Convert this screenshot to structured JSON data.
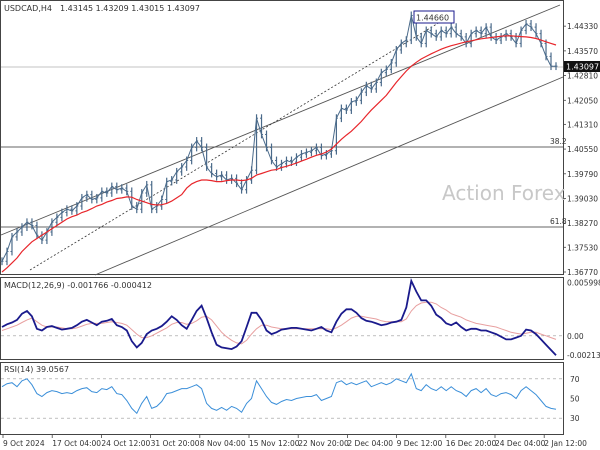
{
  "header": {
    "symbol": "USDCAD,H4",
    "ohlc": "1.43145 1.43209 1.43015 1.43097"
  },
  "watermark": "Action Forex",
  "annotations": {
    "high_label": "1.44660",
    "last_price": "1.43097",
    "fib_382": "38.2",
    "fib_618": "61.8"
  },
  "colors": {
    "candle": "#4a6a8a",
    "ma": "#e8262b",
    "macd": "#1a1a8c",
    "signal": "#e8a0a0",
    "rsi": "#3b8fd9",
    "channel": "#555555",
    "grid_dash": "#999999"
  },
  "chart_data": [
    {
      "name": "price",
      "type": "line",
      "ylim": [
        1.3677,
        1.4495
      ],
      "y_ticks": [
        "1.44330",
        "1.43570",
        "1.42810",
        "1.42050",
        "1.41310",
        "1.40550",
        "1.39790",
        "1.39030",
        "1.38270",
        "1.37530",
        "1.36770"
      ],
      "x_ticks": [
        "9 Oct 2024",
        "17 Oct 04:00",
        "24 Oct 12:00",
        "31 Oct 20:00",
        "8 Nov 04:00",
        "15 Nov 12:00",
        "22 Nov 20:00",
        "2 Dec 04:00",
        "9 Dec 12:00",
        "16 Dec 20:00",
        "24 Dec 04:00",
        "2 Jan 12:00"
      ],
      "x": [
        0,
        3,
        6,
        9,
        12,
        15,
        18,
        21,
        24,
        27,
        30,
        33,
        36,
        39,
        42,
        45,
        48,
        51,
        54,
        57,
        60,
        63,
        66,
        69,
        72,
        75,
        78,
        81,
        84,
        87,
        90,
        93,
        96,
        99,
        102,
        105,
        108,
        111,
        114,
        117,
        120,
        123,
        126,
        129,
        132,
        135,
        138,
        141,
        144,
        147,
        150,
        153,
        156,
        159,
        162,
        165,
        168,
        171,
        174,
        177,
        180,
        183,
        186,
        189,
        192,
        195,
        198,
        201,
        204,
        207,
        210,
        213,
        216,
        219,
        222,
        225,
        228,
        231,
        234,
        237,
        240,
        243,
        246,
        249,
        252,
        255,
        258,
        261,
        264,
        267,
        270,
        273,
        276,
        279,
        282,
        285,
        288,
        291,
        294,
        297,
        300,
        303,
        306,
        309,
        312,
        315,
        318,
        321,
        324,
        327,
        330,
        333
      ],
      "close": [
        1.371,
        1.374,
        1.3785,
        1.38,
        1.3815,
        1.383,
        1.382,
        1.379,
        1.3775,
        1.38,
        1.383,
        1.3845,
        1.386,
        1.387,
        1.3865,
        1.388,
        1.3905,
        1.3915,
        1.39,
        1.3905,
        1.3925,
        1.392,
        1.394,
        1.393,
        1.3935,
        1.3925,
        1.388,
        1.387,
        1.392,
        1.3945,
        1.387,
        1.388,
        1.39,
        1.3955,
        1.396,
        1.3985,
        1.4,
        1.402,
        1.406,
        1.408,
        1.406,
        1.4,
        1.398,
        1.397,
        1.3975,
        1.396,
        1.3965,
        1.395,
        1.393,
        1.396,
        1.399,
        1.415,
        1.41,
        1.406,
        1.402,
        1.4,
        1.401,
        1.402,
        1.4015,
        1.403,
        1.404,
        1.4045,
        1.405,
        1.406,
        1.4035,
        1.404,
        1.405,
        1.415,
        1.418,
        1.4175,
        1.42,
        1.4205,
        1.423,
        1.425,
        1.424,
        1.426,
        1.429,
        1.43,
        1.432,
        1.436,
        1.438,
        1.439,
        1.4466,
        1.44,
        1.438,
        1.442,
        1.441,
        1.44,
        1.442,
        1.441,
        1.443,
        1.441,
        1.44,
        1.438,
        1.441,
        1.442,
        1.441,
        1.443,
        1.44,
        1.439,
        1.44,
        1.441,
        1.44,
        1.438,
        1.442,
        1.444,
        1.443,
        1.441,
        1.438,
        1.434,
        1.431,
        1.431
      ],
      "ma": [
        1.3677,
        1.369,
        1.3705,
        1.372,
        1.374,
        1.3755,
        1.377,
        1.378,
        1.379,
        1.38,
        1.381,
        1.382,
        1.383,
        1.384,
        1.3847,
        1.3852,
        1.386,
        1.3865,
        1.3872,
        1.388,
        1.3885,
        1.3892,
        1.3897,
        1.3903,
        1.3905,
        1.3908,
        1.3907,
        1.39,
        1.3895,
        1.389,
        1.3885,
        1.3883,
        1.3884,
        1.3888,
        1.3895,
        1.3905,
        1.3915,
        1.3935,
        1.3948,
        1.3955,
        1.396,
        1.396,
        1.3958,
        1.3955,
        1.3955,
        1.3958,
        1.396,
        1.396,
        1.3958,
        1.396,
        1.3965,
        1.3975,
        1.398,
        1.3985,
        1.399,
        1.3992,
        1.3998,
        1.4002,
        1.4007,
        1.4012,
        1.4018,
        1.4024,
        1.403,
        1.4036,
        1.404,
        1.4046,
        1.4055,
        1.407,
        1.4085,
        1.4098,
        1.411,
        1.4125,
        1.414,
        1.4158,
        1.4175,
        1.419,
        1.4205,
        1.422,
        1.424,
        1.426,
        1.4278,
        1.4295,
        1.431,
        1.4322,
        1.4332,
        1.434,
        1.4348,
        1.4355,
        1.4362,
        1.4368,
        1.4373,
        1.4377,
        1.4381,
        1.4385,
        1.4388,
        1.4391,
        1.4394,
        1.4396,
        1.4398,
        1.44,
        1.4402,
        1.4403,
        1.4403,
        1.4402,
        1.4401,
        1.44,
        1.4398,
        1.4395,
        1.439,
        1.4385,
        1.438,
        1.4375
      ]
    },
    {
      "name": "MACD(12,26,9)",
      "type": "line",
      "title": "MACD(12,26,9) -0.001766 -0.000412",
      "ylim": [
        -0.0025,
        0.0063
      ],
      "y_ticks": [
        "0.005998",
        "0.00",
        "-0.002136"
      ],
      "macd": [
        0.001,
        0.0013,
        0.0015,
        0.0018,
        0.0025,
        0.0028,
        0.0022,
        0.0008,
        0.0006,
        0.001,
        0.0011,
        0.0009,
        0.0007,
        0.0008,
        0.0009,
        0.0012,
        0.0016,
        0.0018,
        0.0015,
        0.0012,
        0.0016,
        0.0017,
        0.0019,
        0.0012,
        0.001,
        0.0006,
        -0.0006,
        -0.0013,
        -0.0008,
        0.0002,
        0.0006,
        0.0008,
        0.0011,
        0.0016,
        0.0022,
        0.0018,
        0.0012,
        0.0008,
        0.0018,
        0.0028,
        0.0034,
        0.002,
        0.0004,
        -0.001,
        -0.0013,
        -0.0014,
        -0.0015,
        -0.0012,
        -0.0006,
        0.001,
        0.0026,
        0.0026,
        0.0018,
        0.0006,
        0.0002,
        0.0004,
        0.0007,
        0.0008,
        0.0009,
        0.0009,
        0.0008,
        0.0007,
        0.0006,
        0.0008,
        0.001,
        0.0006,
        0.0004,
        0.0016,
        0.0025,
        0.003,
        0.003,
        0.0026,
        0.002,
        0.0017,
        0.0016,
        0.0014,
        0.0012,
        0.0013,
        0.0015,
        0.0016,
        0.0018,
        0.0032,
        0.0062,
        0.005,
        0.004,
        0.004,
        0.0034,
        0.0024,
        0.002,
        0.0014,
        0.0012,
        0.0015,
        0.001,
        0.0006,
        0.0008,
        0.0008,
        0.0006,
        0.0006,
        0.0004,
        0.0002,
        -0.0001,
        -0.0004,
        -0.0004,
        -0.0002,
        0.0,
        0.0007,
        0.0006,
        0.0002,
        -0.0004,
        -0.001,
        -0.0016,
        -0.0022
      ],
      "signal": [
        0.0006,
        0.0008,
        0.001,
        0.0012,
        0.0015,
        0.0018,
        0.002,
        0.0016,
        0.0012,
        0.001,
        0.001,
        0.001,
        0.0009,
        0.0008,
        0.0008,
        0.0009,
        0.0011,
        0.0013,
        0.0014,
        0.0014,
        0.0014,
        0.0015,
        0.0016,
        0.0015,
        0.0014,
        0.0012,
        0.0007,
        0.0002,
        -0.0002,
        -0.0002,
        0.0,
        0.0003,
        0.0006,
        0.0009,
        0.0013,
        0.0015,
        0.0015,
        0.0013,
        0.0014,
        0.0017,
        0.0021,
        0.0022,
        0.0018,
        0.0011,
        0.0004,
        -0.0001,
        -0.0005,
        -0.0008,
        -0.0009,
        -0.0005,
        0.0002,
        0.0008,
        0.0012,
        0.0012,
        0.001,
        0.0009,
        0.0008,
        0.0008,
        0.0008,
        0.0008,
        0.0008,
        0.0008,
        0.0008,
        0.0008,
        0.0008,
        0.0008,
        0.0007,
        0.0009,
        0.0012,
        0.0016,
        0.002,
        0.0022,
        0.0022,
        0.0021,
        0.002,
        0.0019,
        0.0017,
        0.0016,
        0.0016,
        0.0016,
        0.0016,
        0.0019,
        0.0028,
        0.0034,
        0.0037,
        0.0038,
        0.0038,
        0.0036,
        0.0032,
        0.0029,
        0.0025,
        0.0023,
        0.0021,
        0.0018,
        0.0016,
        0.0014,
        0.0013,
        0.0012,
        0.0011,
        0.001,
        0.0008,
        0.0006,
        0.0004,
        0.0003,
        0.0002,
        0.0003,
        0.0004,
        0.0004,
        0.0002,
        0.0,
        -0.0002,
        -0.0004
      ]
    },
    {
      "name": "RSI(14)",
      "type": "line",
      "title": "RSI(14) 39.0567",
      "ylim": [
        15,
        85
      ],
      "y_ticks": [
        "70",
        "50",
        "30"
      ],
      "levels": [
        70,
        30
      ],
      "values": [
        62,
        65,
        66,
        62,
        68,
        70,
        64,
        55,
        52,
        56,
        58,
        57,
        55,
        56,
        55,
        58,
        60,
        61,
        57,
        56,
        60,
        59,
        62,
        55,
        54,
        48,
        40,
        35,
        45,
        52,
        40,
        42,
        47,
        55,
        56,
        58,
        60,
        60,
        62,
        64,
        60,
        45,
        40,
        38,
        41,
        38,
        42,
        40,
        36,
        45,
        50,
        68,
        60,
        52,
        46,
        44,
        47,
        49,
        48,
        50,
        51,
        52,
        52,
        54,
        48,
        50,
        52,
        66,
        68,
        64,
        66,
        64,
        66,
        68,
        62,
        64,
        66,
        64,
        66,
        70,
        68,
        66,
        75,
        60,
        58,
        64,
        60,
        58,
        62,
        58,
        62,
        58,
        56,
        52,
        58,
        60,
        56,
        60,
        54,
        52,
        55,
        56,
        54,
        50,
        58,
        62,
        58,
        54,
        48,
        42,
        40,
        39
      ]
    }
  ]
}
